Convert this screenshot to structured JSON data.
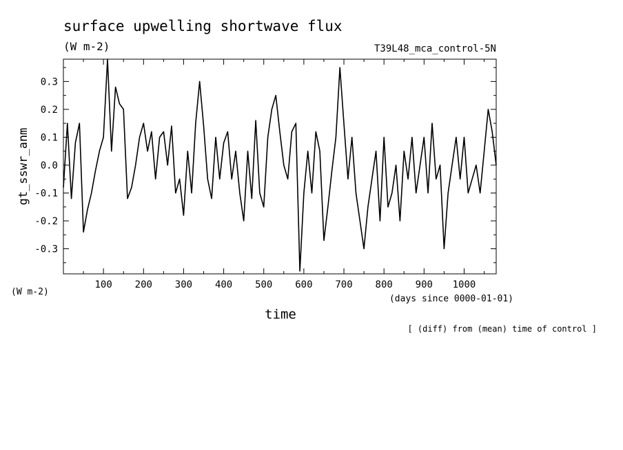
{
  "chart_data": {
    "type": "line",
    "title": "surface upwelling shortwave flux",
    "units": "(W m-2)",
    "run_label": "T39L48_mca_control-5N",
    "ylabel": "gt_sswr_anm",
    "y_units": "(W m-2)",
    "xlabel": "time",
    "x_units_note": "(days since 0000-01-01)",
    "footnote": "[ (diff) from (mean) time of control ]",
    "xlim": [
      0,
      1080
    ],
    "ylim": [
      -0.39,
      0.38
    ],
    "x_ticks": [
      100,
      200,
      300,
      400,
      500,
      600,
      700,
      800,
      900,
      1000
    ],
    "y_ticks": [
      -0.3,
      -0.2,
      -0.1,
      0.0,
      0.1,
      0.2,
      0.3
    ],
    "y_tick_labels": [
      "-0.3",
      "-0.2",
      "-0.1",
      "0.0",
      "0.1",
      "0.2",
      "0.3"
    ],
    "grid": false,
    "line_color": "#000000",
    "series": [
      {
        "x": [
          0,
          10,
          20,
          30,
          40,
          50,
          60,
          70,
          80,
          90,
          100,
          110,
          120,
          130,
          140,
          150,
          160,
          170,
          180,
          190,
          200,
          210,
          220,
          230,
          240,
          250,
          260,
          270,
          280,
          290,
          300,
          310,
          320,
          330,
          340,
          350,
          360,
          370,
          380,
          390,
          400,
          410,
          420,
          430,
          440,
          450,
          460,
          470,
          480,
          490,
          500,
          510,
          520,
          530,
          540,
          550,
          560,
          570,
          580,
          590,
          600,
          610,
          620,
          630,
          640,
          650,
          660,
          670,
          680,
          690,
          700,
          710,
          720,
          730,
          740,
          750,
          760,
          770,
          780,
          790,
          800,
          810,
          820,
          830,
          840,
          850,
          860,
          870,
          880,
          890,
          900,
          910,
          920,
          930,
          940,
          950,
          960,
          970,
          980,
          990,
          1000,
          1010,
          1020,
          1030,
          1040,
          1050,
          1060,
          1070,
          1080
        ],
        "y": [
          -0.08,
          0.15,
          -0.12,
          0.08,
          0.15,
          -0.24,
          -0.16,
          -0.1,
          -0.02,
          0.05,
          0.1,
          0.38,
          0.05,
          0.28,
          0.22,
          0.2,
          -0.12,
          -0.08,
          0.0,
          0.1,
          0.15,
          0.05,
          0.12,
          -0.05,
          0.1,
          0.12,
          0.0,
          0.14,
          -0.1,
          -0.05,
          -0.18,
          0.05,
          -0.1,
          0.15,
          0.3,
          0.14,
          -0.05,
          -0.12,
          0.1,
          -0.05,
          0.08,
          0.12,
          -0.05,
          0.05,
          -0.1,
          -0.2,
          0.05,
          -0.12,
          0.16,
          -0.1,
          -0.15,
          0.1,
          0.2,
          0.25,
          0.12,
          0.0,
          -0.05,
          0.12,
          0.15,
          -0.38,
          -0.1,
          0.05,
          -0.1,
          0.12,
          0.05,
          -0.27,
          -0.15,
          -0.02,
          0.1,
          0.35,
          0.15,
          -0.05,
          0.1,
          -0.1,
          -0.2,
          -0.3,
          -0.15,
          -0.05,
          0.05,
          -0.2,
          0.1,
          -0.15,
          -0.1,
          0.0,
          -0.2,
          0.05,
          -0.05,
          0.1,
          -0.1,
          0.0,
          0.1,
          -0.1,
          0.15,
          -0.05,
          0.0,
          -0.3,
          -0.1,
          0.0,
          0.1,
          -0.05,
          0.1,
          -0.1,
          -0.05,
          0.0,
          -0.1,
          0.05,
          0.2,
          0.12,
          0.0
        ]
      }
    ]
  }
}
